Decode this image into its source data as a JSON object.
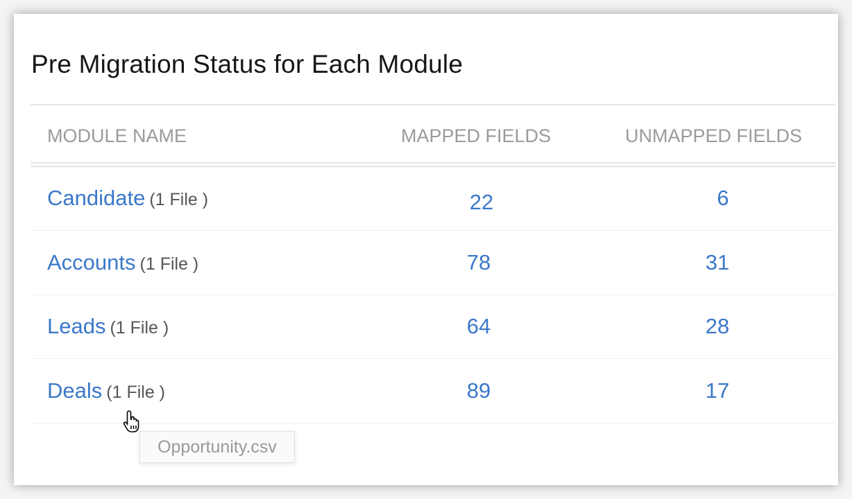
{
  "title": "Pre Migration Status for Each Module",
  "columns": [
    "MODULE NAME",
    "MAPPED FIELDS",
    "UNMAPPED FIELDS"
  ],
  "rows": [
    {
      "module": "Candidate",
      "files": "(1 File )",
      "mapped": "22",
      "unmapped": "6"
    },
    {
      "module": "Accounts",
      "files": "(1 File )",
      "mapped": "78",
      "unmapped": "31"
    },
    {
      "module": "Leads",
      "files": "(1 File )",
      "mapped": "64",
      "unmapped": "28"
    },
    {
      "module": "Deals",
      "files": "(1 File )",
      "mapped": "89",
      "unmapped": "17"
    }
  ],
  "tooltip": "Opportunity.csv",
  "colors": {
    "link": "#3a78c9",
    "header": "#9a9a9a"
  },
  "cursor_icon": "hand-pointer-icon"
}
